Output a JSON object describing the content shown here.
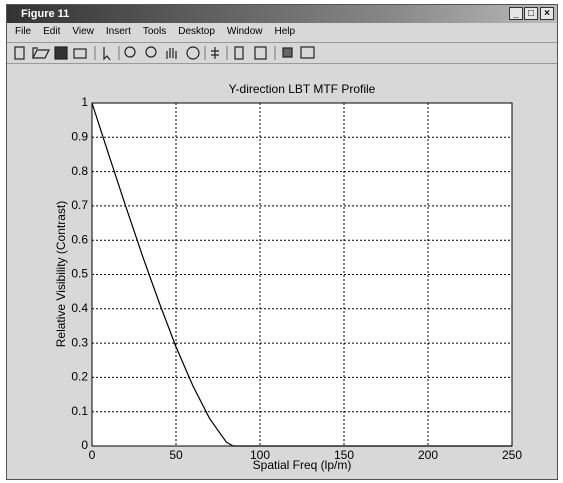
{
  "window": {
    "title": "Figure 11",
    "menu": [
      "File",
      "Edit",
      "View",
      "Insert",
      "Tools",
      "Desktop",
      "Window",
      "Help"
    ]
  },
  "chart_data": {
    "type": "line",
    "title": "Y-direction LBT MTF Profile",
    "x_label": "Spatial Freq (lp/m)",
    "y_label": "Relative Visibility (Contrast)",
    "x": [
      0,
      10,
      20,
      30,
      40,
      50,
      60,
      70,
      80,
      84,
      250
    ],
    "series": [
      {
        "color": "#000000",
        "values": [
          1,
          0.849,
          0.7,
          0.555,
          0.418,
          0.289,
          0.176,
          0.08,
          0.011,
          0,
          0
        ]
      }
    ],
    "xlim": [
      0,
      250
    ],
    "ylim": [
      0,
      1
    ],
    "xticks": [
      0,
      50,
      100,
      150,
      200,
      250
    ],
    "yticks": [
      0,
      0.1,
      0.2,
      0.3,
      0.4,
      0.5,
      0.6,
      0.7,
      0.8,
      0.9,
      1
    ],
    "grid": true
  }
}
